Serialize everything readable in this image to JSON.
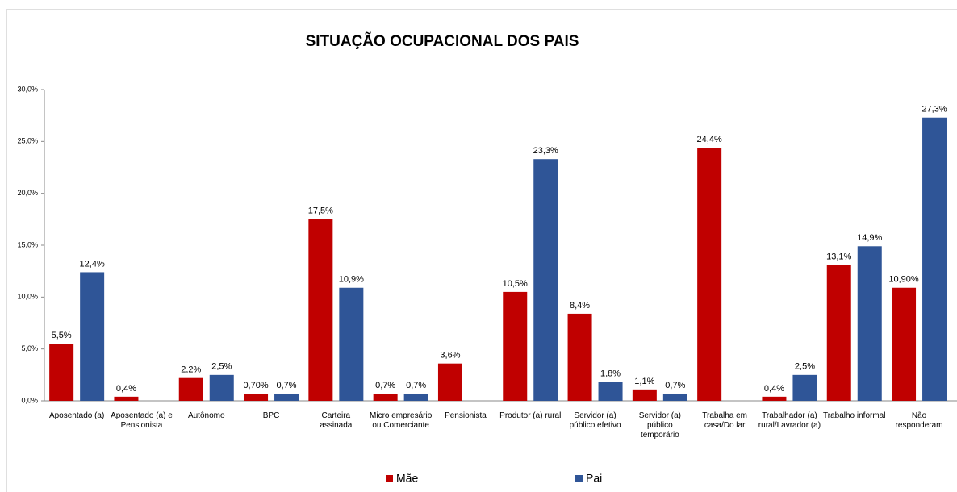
{
  "chart_data": {
    "type": "bar",
    "title": "SITUAÇÃO OCUPACIONAL DOS PAIS",
    "categories": [
      "Aposentado (a)",
      "Aposentado (a) e Pensionista",
      "Autônomo",
      "BPC",
      "Carteira assinada",
      "Micro empresário ou Comerciante",
      "Pensionista",
      "Produtor (a) rural",
      "Servidor (a) público efetivo",
      "Servidor (a) público temporário",
      "Trabalha em casa/Do lar",
      "Trabalhador (a) rural/Lavrador (a)",
      "Trabalho informal",
      "Não responderam"
    ],
    "series": [
      {
        "name": "Mãe",
        "color": "#c00000",
        "values": [
          5.5,
          0.4,
          2.2,
          0.7,
          17.5,
          0.7,
          3.6,
          10.5,
          8.4,
          1.1,
          24.4,
          0.4,
          13.1,
          10.9
        ],
        "value_labels": [
          "5,5%",
          "0,4%",
          "2,2%",
          "0,70%",
          "17,5%",
          "0,7%",
          "3,6%",
          "10,5%",
          "8,4%",
          "1,1%",
          "24,4%",
          "0,4%",
          "13,1%",
          "10,90%"
        ]
      },
      {
        "name": "Pai",
        "color": "#2f5597",
        "values": [
          12.4,
          null,
          2.5,
          0.7,
          10.9,
          0.7,
          null,
          23.3,
          1.8,
          0.7,
          null,
          2.5,
          14.9,
          27.3
        ],
        "value_labels": [
          "12,4%",
          null,
          "2,5%",
          "0,7%",
          "10,9%",
          "0,7%",
          null,
          "23,3%",
          "1,8%",
          "0,7%",
          null,
          "2,5%",
          "14,9%",
          "27,3%"
        ]
      }
    ],
    "ylim": [
      0,
      30
    ],
    "yticks": [
      {
        "value": 0,
        "label": "0,0%"
      },
      {
        "value": 5,
        "label": "5,0%"
      },
      {
        "value": 10,
        "label": "10,0%"
      },
      {
        "value": 15,
        "label": "15,0%"
      },
      {
        "value": 20,
        "label": "20,0%"
      },
      {
        "value": 25,
        "label": "25,0%"
      },
      {
        "value": 30,
        "label": "30,0%"
      }
    ],
    "grid": false,
    "legend": "bottom"
  }
}
